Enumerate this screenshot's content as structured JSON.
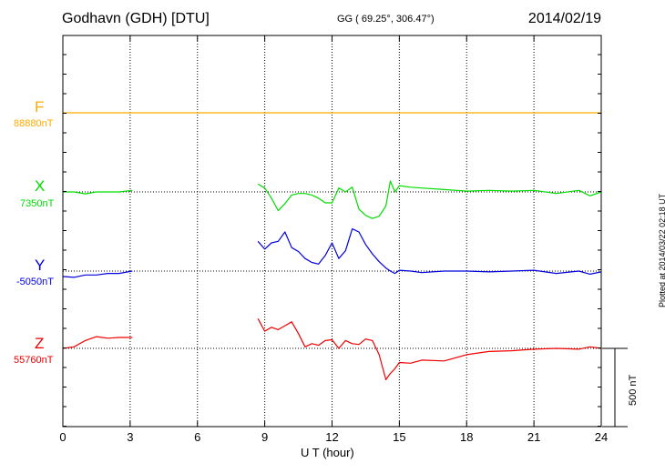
{
  "header": {
    "station": "Godhavn (GDH)  [DTU]",
    "coords": "GG ( 69.25°, 306.47°)",
    "date": "2014/02/19"
  },
  "components": [
    {
      "name": "F",
      "baseline": "88880nT",
      "color": "#ffaa00"
    },
    {
      "name": "X",
      "baseline": "7350nT",
      "color": "#00dd00"
    },
    {
      "name": "Y",
      "baseline": "-5050nT",
      "color": "#0000dd"
    },
    {
      "name": "Z",
      "baseline": "55760nT",
      "color": "#ee0000"
    }
  ],
  "footer": {
    "plotted": "Plotted at 2014/03/22 02:18 UT",
    "scale_label": "500 nT"
  },
  "chart_data": {
    "type": "line",
    "title": "Godhavn (GDH)  [DTU]",
    "xlabel": "U T (hour)",
    "ylabel": "",
    "xlim": [
      0,
      24
    ],
    "xticks": [
      0,
      3,
      6,
      9,
      12,
      15,
      18,
      21,
      24
    ],
    "grid": true,
    "scale_bar_nT": 500,
    "series": [
      {
        "name": "F",
        "color": "#ffaa00",
        "baseline_nT": 88880,
        "x": [
          0,
          24
        ],
        "y": [
          0,
          0
        ]
      },
      {
        "name": "X",
        "color": "#00dd00",
        "baseline_nT": 7350,
        "x": [
          0,
          0.5,
          1,
          1.5,
          2,
          2.5,
          3.1,
          null,
          8.7,
          9.0,
          9.3,
          9.6,
          9.9,
          10.2,
          10.5,
          10.8,
          11.1,
          11.4,
          11.7,
          12.0,
          12.3,
          12.6,
          12.9,
          13.2,
          13.5,
          13.8,
          14.1,
          14.4,
          14.6,
          14.8,
          15.0,
          15.5,
          16,
          17,
          18,
          19,
          20,
          21,
          22,
          23,
          23.5,
          24
        ],
        "y": [
          0,
          0,
          -12,
          0,
          0,
          0,
          10,
          null,
          50,
          25,
          -40,
          -120,
          -75,
          -20,
          -10,
          -10,
          -20,
          -40,
          -70,
          -70,
          25,
          0,
          30,
          -110,
          -150,
          -170,
          -155,
          -90,
          70,
          0,
          40,
          30,
          25,
          15,
          5,
          10,
          5,
          10,
          -10,
          10,
          -25,
          0
        ]
      },
      {
        "name": "Y",
        "color": "#0000dd",
        "baseline_nT": -5050,
        "x": [
          0,
          0.5,
          1,
          1.5,
          2,
          2.5,
          3.1,
          null,
          8.7,
          9.0,
          9.3,
          9.6,
          9.9,
          10.2,
          10.5,
          10.8,
          11.1,
          11.4,
          11.7,
          12.0,
          12.3,
          12.6,
          12.9,
          13.2,
          13.5,
          13.8,
          14.1,
          14.4,
          14.6,
          14.8,
          15.0,
          15.5,
          16,
          17,
          18,
          19,
          20,
          21,
          22,
          23,
          23.5,
          24
        ],
        "y": [
          -35,
          -40,
          -25,
          -25,
          -15,
          -15,
          0,
          null,
          190,
          140,
          180,
          190,
          250,
          150,
          125,
          80,
          55,
          45,
          100,
          180,
          80,
          130,
          270,
          250,
          170,
          110,
          60,
          20,
          0,
          -15,
          5,
          0,
          -10,
          0,
          0,
          -5,
          0,
          5,
          -15,
          0,
          -20,
          -5
        ]
      },
      {
        "name": "Z",
        "color": "#ee0000",
        "baseline_nT": 55760,
        "x": [
          0,
          0.5,
          1,
          1.5,
          2,
          2.5,
          3.1,
          null,
          8.7,
          9.0,
          9.3,
          9.6,
          9.9,
          10.2,
          10.5,
          10.8,
          11.1,
          11.4,
          11.7,
          12.0,
          12.3,
          12.6,
          12.9,
          13.2,
          13.5,
          13.8,
          14.1,
          14.4,
          14.6,
          14.8,
          15.0,
          15.5,
          16,
          17,
          18,
          19,
          20,
          21,
          22,
          23,
          23.5,
          24
        ],
        "y": [
          0,
          10,
          50,
          75,
          65,
          70,
          70,
          null,
          190,
          110,
          135,
          120,
          145,
          170,
          95,
          10,
          30,
          20,
          50,
          55,
          0,
          50,
          30,
          25,
          60,
          50,
          -40,
          -200,
          -160,
          -130,
          -90,
          -95,
          -75,
          -80,
          -40,
          -20,
          -15,
          -5,
          0,
          -5,
          10,
          0
        ]
      }
    ]
  }
}
